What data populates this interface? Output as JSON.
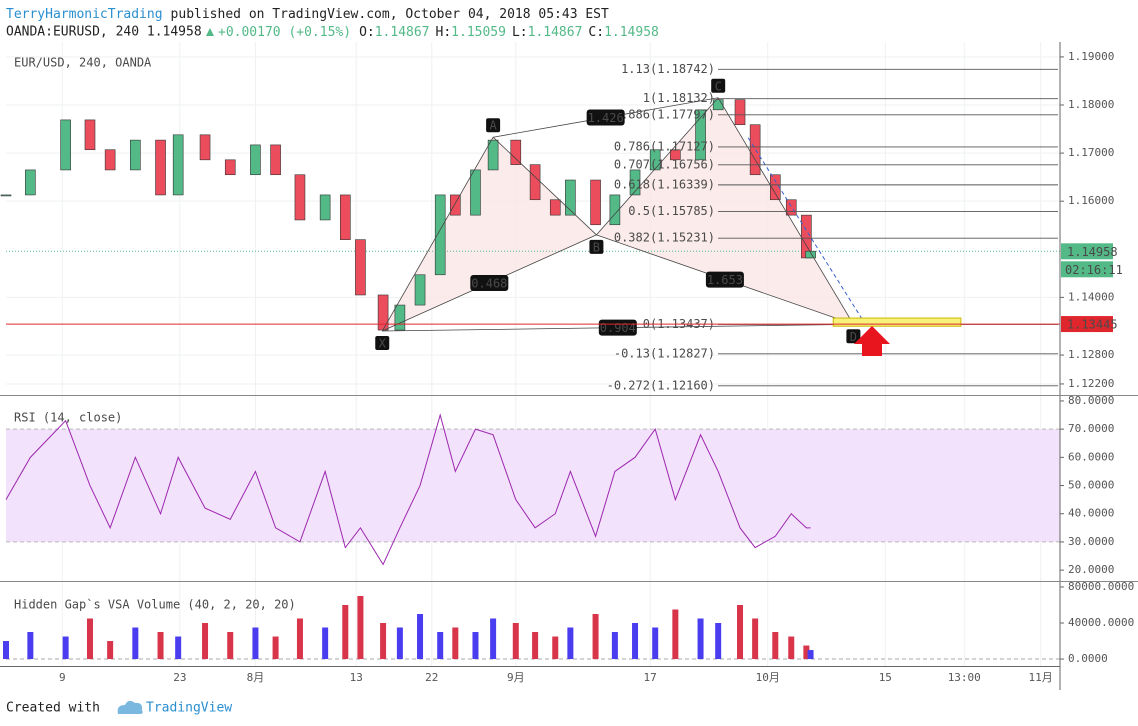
{
  "header": {
    "author": "TerryHarmonicTrading",
    "published": "published on TradingView.com, October 04, 2018 05:43 EST",
    "symbol": "OANDA:EURUSD, 240 1.14958",
    "change": "+0.00170 (+0.15%)",
    "ohlc": [
      {
        "label": "O:",
        "value": "1.14867"
      },
      {
        "label": "H:",
        "value": "1.15059"
      },
      {
        "label": "L:",
        "value": "1.14867"
      },
      {
        "label": "C:",
        "value": "1.14958"
      }
    ]
  },
  "chart_data": [
    {
      "type": "candlestick",
      "title": "EUR/USD, 240, OANDA",
      "colors": {
        "up": "#53b987",
        "down": "#eb4d5c"
      },
      "x": [
        1.3,
        4.2,
        8.4,
        11.3,
        13.7,
        16.7,
        19.7,
        21.8,
        25,
        28,
        31,
        33.4,
        36.3,
        39.3,
        41.7,
        43.5,
        46.2,
        48.2,
        50.6,
        53,
        54.8,
        57.2,
        59.3,
        62,
        64.3,
        66.7,
        68.5,
        71.5,
        73.8,
        76.2,
        78.6,
        81,
        84,
        86.1,
        88.7,
        90.5,
        92.9,
        94.8,
        96.6,
        97.1
      ],
      "values": [
        1.1613,
        1.1665,
        1.1769,
        1.1707,
        1.1665,
        1.1727,
        1.1613,
        1.1738,
        1.1686,
        1.1655,
        1.1717,
        1.1655,
        1.1561,
        1.1613,
        1.152,
        1.1405,
        1.1332,
        1.1384,
        1.1447,
        1.1613,
        1.1571,
        1.1665,
        1.1727,
        1.1676,
        1.1603,
        1.1571,
        1.1644,
        1.1551,
        1.1613,
        1.1665,
        1.1707,
        1.1686,
        1.179,
        1.1811,
        1.1759,
        1.1655,
        1.1603,
        1.1571,
        1.1482,
        1.1496
      ],
      "ylim": [
        1.1197,
        1.1931
      ],
      "yticks": [
        {
          "value": 1.19,
          "label": "1.19000"
        },
        {
          "value": 1.18,
          "label": "1.18000"
        },
        {
          "value": 1.17,
          "label": "1.17000"
        },
        {
          "value": 1.16,
          "label": "1.16000"
        },
        {
          "value": 1.14,
          "label": "1.14000"
        },
        {
          "value": 1.128,
          "label": "1.12800"
        },
        {
          "value": 1.122,
          "label": "1.12200"
        }
      ],
      "grid": true,
      "pattern": {
        "points": [
          {
            "label": "X",
            "x": 46.1,
            "y": 1.133
          },
          {
            "label": "A",
            "x": 59.3,
            "y": 1.1733
          },
          {
            "label": "B",
            "x": 71.6,
            "y": 1.153
          },
          {
            "label": "C",
            "x": 86.1,
            "y": 1.1815
          },
          {
            "label": "D",
            "x": 102.2,
            "y": 1.1344
          }
        ],
        "ratios": [
          0.468,
          1.426,
          1.653,
          0.904
        ]
      },
      "fib_levels": [
        {
          "value": 1.18742,
          "label": "1.13(1.18742)"
        },
        {
          "value": 1.18132,
          "label": "1(1.18132)"
        },
        {
          "value": 1.17797,
          "label": "0.886(1.17797)"
        },
        {
          "value": 1.17127,
          "label": "0.786(1.17127)"
        },
        {
          "value": 1.16756,
          "label": "0.707(1.16756)"
        },
        {
          "value": 1.16339,
          "label": "0.618(1.16339)"
        },
        {
          "value": 1.15785,
          "label": "0.5(1.15785)"
        },
        {
          "value": 1.15231,
          "label": "0.382(1.15231)"
        },
        {
          "value": 1.13437,
          "label": "0(1.13437)"
        },
        {
          "value": 1.12827,
          "label": "-0.13(1.12827)"
        },
        {
          "value": 1.1216,
          "label": "-0.272(1.12160)"
        }
      ],
      "zone": {
        "x": [
          99.8,
          115
        ],
        "y": [
          1.134,
          1.1357
        ]
      },
      "last_price": 1.14958,
      "countdown": "02:16:11",
      "level_line": 1.13445
    },
    {
      "type": "line",
      "title": "RSI (14, close)",
      "color": "#9c27b0",
      "band_color": "#f3e2fb",
      "x": [
        1.3,
        4.2,
        8.4,
        11.3,
        13.7,
        16.7,
        19.7,
        21.8,
        25,
        28,
        31,
        33.4,
        36.3,
        39.3,
        41.7,
        43.5,
        46.2,
        48.2,
        50.6,
        53,
        54.8,
        57.2,
        59.3,
        62,
        64.3,
        66.7,
        68.5,
        71.5,
        73.8,
        76.2,
        78.6,
        81,
        84,
        86.1,
        88.7,
        90.5,
        92.9,
        94.8,
        96.6,
        97.1
      ],
      "values": [
        45,
        60,
        73,
        50,
        35,
        60,
        40,
        60,
        42,
        38,
        55,
        35,
        30,
        55,
        28,
        35,
        22,
        35,
        50,
        75,
        55,
        70,
        68,
        45,
        35,
        40,
        55,
        32,
        55,
        60,
        70,
        45,
        68,
        55,
        35,
        28,
        32,
        40,
        35,
        35
      ],
      "bands": [
        70,
        30
      ],
      "ylim": [
        16.5,
        81.4
      ],
      "yticks": [
        {
          "value": 80,
          "label": "80.0000"
        },
        {
          "value": 70,
          "label": "70.0000"
        },
        {
          "value": 60,
          "label": "60.0000"
        },
        {
          "value": 50,
          "label": "50.0000"
        },
        {
          "value": 40,
          "label": "40.0000"
        },
        {
          "value": 30,
          "label": "30.0000"
        },
        {
          "value": 20,
          "label": "20.0000"
        }
      ]
    },
    {
      "type": "bar",
      "title": "Hidden Gap`s VSA Volume (40, 2, 20, 20)",
      "colors": {
        "up": "#4a3df0",
        "down": "#d8344a"
      },
      "x": [
        1.3,
        4.2,
        8.4,
        11.3,
        13.7,
        16.7,
        19.7,
        21.8,
        25,
        28,
        31,
        33.4,
        36.3,
        39.3,
        41.7,
        43.5,
        46.2,
        48.2,
        50.6,
        53,
        54.8,
        57.2,
        59.3,
        62,
        64.3,
        66.7,
        68.5,
        71.5,
        73.8,
        76.2,
        78.6,
        81,
        84,
        86.1,
        88.7,
        90.5,
        92.9,
        94.8,
        96.6,
        97.1
      ],
      "values": [
        20000,
        30000,
        25000,
        45000,
        20000,
        35000,
        30000,
        25000,
        40000,
        30000,
        35000,
        25000,
        45000,
        35000,
        60000,
        70000,
        40000,
        35000,
        50000,
        30000,
        35000,
        30000,
        45000,
        40000,
        30000,
        25000,
        35000,
        50000,
        30000,
        40000,
        35000,
        55000,
        45000,
        40000,
        60000,
        45000,
        30000,
        25000,
        15000,
        10000
      ],
      "ylim": [
        -5500,
        83300
      ],
      "yticks": [
        {
          "value": 80000,
          "label": "80000.0000"
        },
        {
          "value": 40000,
          "label": "40000.0000"
        },
        {
          "value": 0,
          "label": "0.0000"
        }
      ],
      "xlim": [
        1.3,
        126.8
      ],
      "xticks": [
        {
          "value": 8,
          "label": "9"
        },
        {
          "value": 22,
          "label": "23"
        },
        {
          "value": 31,
          "label": "8月"
        },
        {
          "value": 43,
          "label": "13"
        },
        {
          "value": 52,
          "label": "22"
        },
        {
          "value": 62,
          "label": "9月"
        },
        {
          "value": 78,
          "label": "17"
        },
        {
          "value": 92,
          "label": "10月"
        },
        {
          "value": 106,
          "label": "15"
        },
        {
          "value": 115.4,
          "label": "13:00"
        },
        {
          "value": 124.5,
          "label": "11月"
        }
      ]
    }
  ],
  "footer": {
    "created": "Created with",
    "brand": "TradingView"
  }
}
